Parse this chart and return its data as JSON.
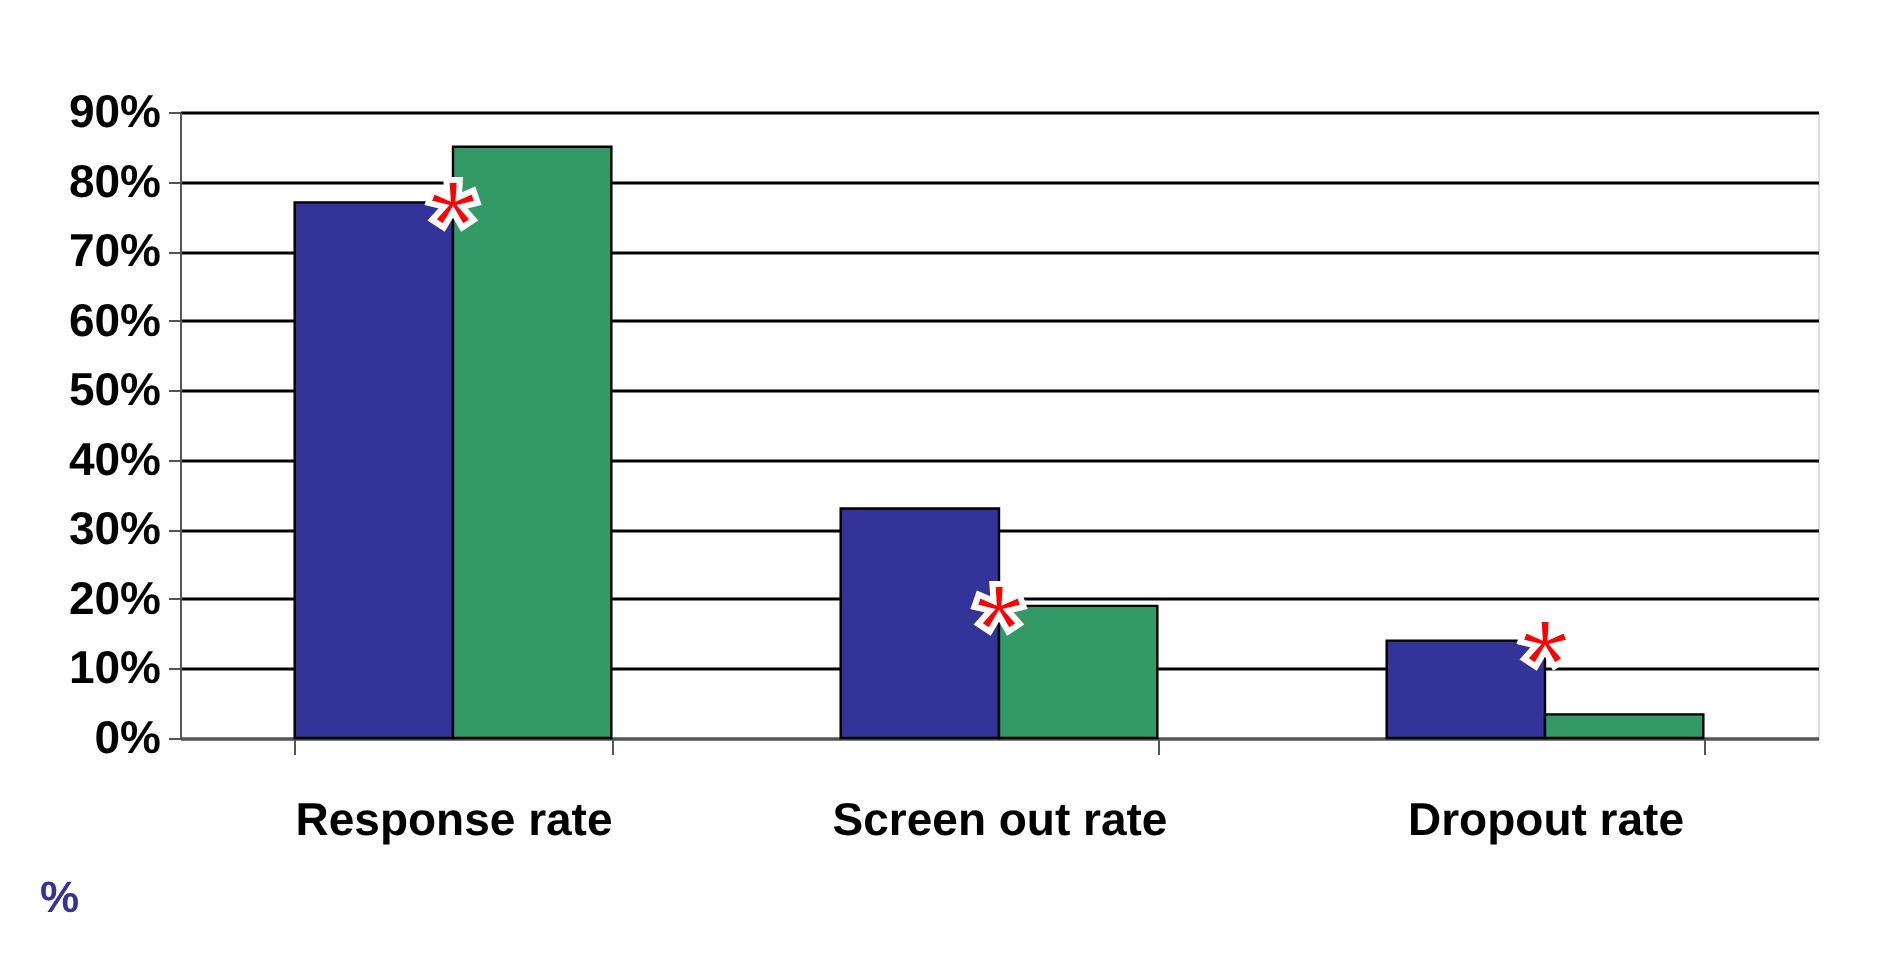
{
  "chart_data": {
    "type": "bar",
    "categories": [
      "Response rate",
      "Screen out rate",
      "Dropout rate"
    ],
    "series": [
      {
        "color": "#333399",
        "values": [
          77,
          33,
          14
        ]
      },
      {
        "color": "#339966",
        "values": [
          85,
          19,
          3.4
        ]
      }
    ],
    "ylim": [
      0,
      90
    ],
    "yticks": [
      {
        "value": 0,
        "label": "0%"
      },
      {
        "value": 10,
        "label": "10%"
      },
      {
        "value": 20,
        "label": "20%"
      },
      {
        "value": 30,
        "label": "30%"
      },
      {
        "value": 40,
        "label": "40%"
      },
      {
        "value": 50,
        "label": "50%"
      },
      {
        "value": 60,
        "label": "60%"
      },
      {
        "value": 70,
        "label": "70%"
      },
      {
        "value": 80,
        "label": "80%"
      },
      {
        "value": 90,
        "label": "90%"
      }
    ],
    "grid": "y",
    "legend": false,
    "annotations": [
      {
        "text": "*",
        "x": "Response rate",
        "y": 77
      },
      {
        "text": "*",
        "x": "Screen out rate",
        "y": 19
      },
      {
        "text": "*",
        "x": "Dropout rate",
        "y": 14
      },
      "%"
    ]
  }
}
